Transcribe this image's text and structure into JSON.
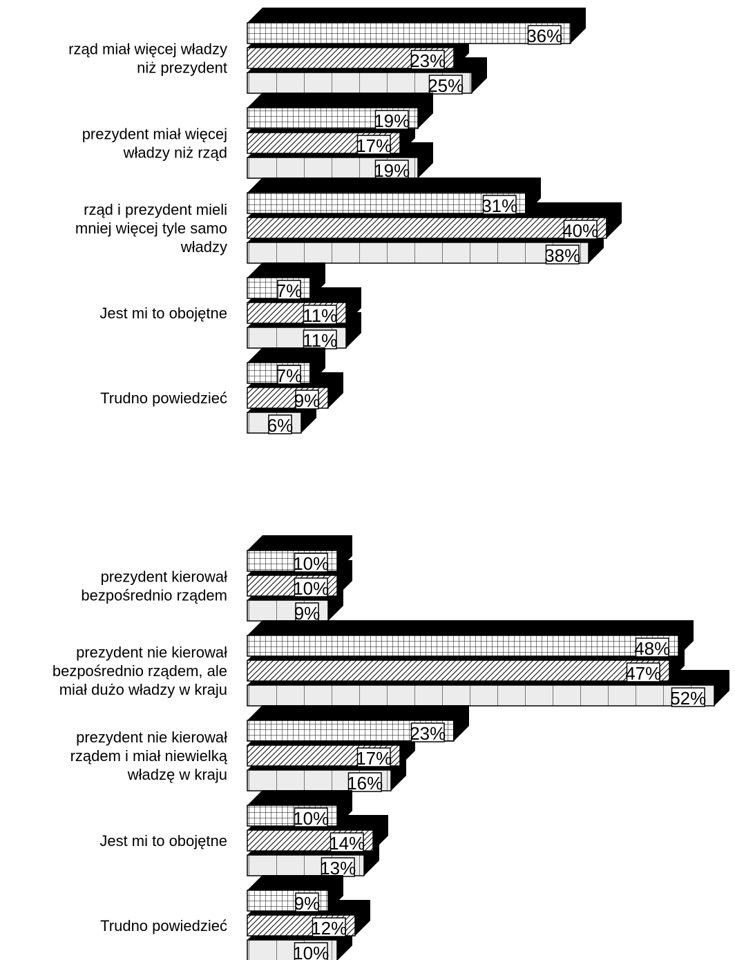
{
  "chart_data": [
    {
      "type": "bar",
      "orientation": "horizontal",
      "style": "3d",
      "categories": [
        [
          "rząd miał więcej władzy",
          "niż prezydent"
        ],
        [
          "prezydent miał więcej",
          "władzy niż rząd"
        ],
        [
          "rząd i prezydent mieli",
          "mniej więcej tyle samo",
          "władzy"
        ],
        [
          "Jest mi to obojętne"
        ],
        [
          "Trudno powiedzieć"
        ]
      ],
      "series": [
        {
          "pattern": "grid",
          "values": [
            36,
            19,
            31,
            7,
            7
          ]
        },
        {
          "pattern": "hatch",
          "values": [
            23,
            17,
            40,
            11,
            9
          ]
        },
        {
          "pattern": "dots",
          "values": [
            25,
            19,
            38,
            11,
            6
          ]
        }
      ],
      "value_labels": [
        [
          "36%",
          "23%",
          "25%"
        ],
        [
          "19%",
          "17%",
          "19%"
        ],
        [
          "31%",
          "40%",
          "38%"
        ],
        [
          "7%",
          "11%",
          "11%"
        ],
        [
          "7%",
          "9%",
          "6%"
        ]
      ],
      "xlim": [
        0,
        60
      ],
      "grid": false,
      "legend": "none"
    },
    {
      "type": "bar",
      "orientation": "horizontal",
      "style": "3d",
      "categories": [
        [
          "prezydent kierował",
          "bezpośrednio rządem"
        ],
        [
          "prezydent nie kierował",
          "bezpośrednio rządem, ale",
          "miał dużo władzy w kraju"
        ],
        [
          "prezydent nie kierował",
          "rządem i miał niewielką",
          "władzę w kraju"
        ],
        [
          "Jest mi to obojętne"
        ],
        [
          "Trudno powiedzieć"
        ]
      ],
      "series": [
        {
          "pattern": "grid",
          "values": [
            10,
            48,
            23,
            10,
            9
          ]
        },
        {
          "pattern": "hatch",
          "values": [
            10,
            47,
            17,
            14,
            12
          ]
        },
        {
          "pattern": "dots",
          "values": [
            9,
            52,
            16,
            13,
            10
          ]
        }
      ],
      "value_labels": [
        [
          "10%",
          "10%",
          "9%"
        ],
        [
          "48%",
          "47%",
          "52%"
        ],
        [
          "23%",
          "17%",
          "16%"
        ],
        [
          "10%",
          "14%",
          "13%"
        ],
        [
          "9%",
          "12%",
          "10%"
        ]
      ],
      "xlim": [
        0,
        60
      ],
      "grid": false,
      "legend": "none"
    }
  ],
  "colors": {
    "ink": "#000000",
    "face": "#ffffff",
    "dot_fill": "#ececec"
  }
}
